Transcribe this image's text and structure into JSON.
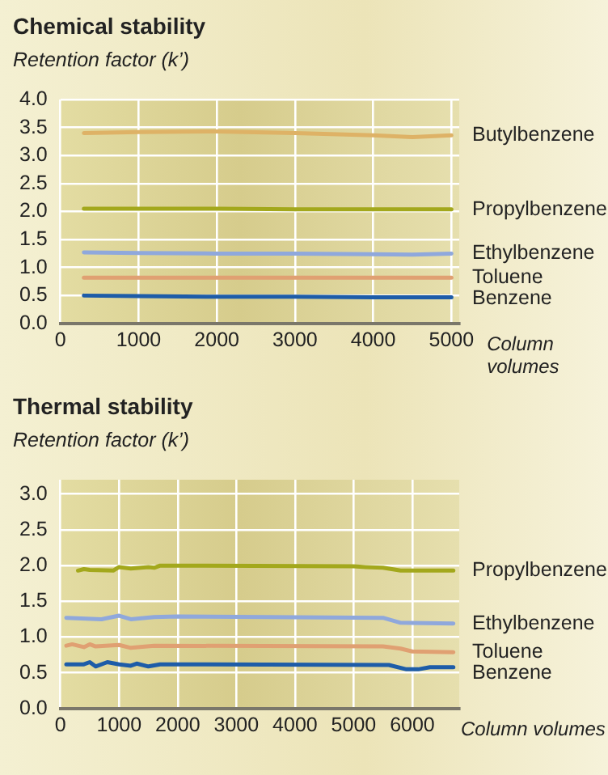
{
  "chart_data": [
    {
      "type": "line",
      "title": "Chemical stability",
      "ylabel": "Retention factor (k’)",
      "xlabel": "Column volumes",
      "xlim": [
        0,
        5100
      ],
      "ylim": [
        0,
        4
      ],
      "xticks": [
        0,
        1000,
        2000,
        3000,
        4000,
        5000
      ],
      "yticks": [
        {
          "value": 0,
          "label": "0.0"
        },
        0.5,
        {
          "value": 1,
          "label": "1.0"
        },
        1.5,
        {
          "value": 2,
          "label": "2.0"
        },
        2.5,
        {
          "value": 3,
          "label": "3.0"
        },
        3.5,
        {
          "value": 4,
          "label": "4.0"
        }
      ],
      "grid": true,
      "marker": "none",
      "line_style": "solid",
      "series": [
        {
          "name": "Butylbenzene",
          "color": "#deb266",
          "x": [
            300,
            1000,
            2000,
            3000,
            4000,
            4500,
            5000
          ],
          "values": [
            3.4,
            3.42,
            3.43,
            3.4,
            3.36,
            3.33,
            3.36
          ]
        },
        {
          "name": "Propylbenzene",
          "color": "#a3a81c",
          "x": [
            300,
            1000,
            2000,
            3000,
            4000,
            5000
          ],
          "values": [
            2.05,
            2.05,
            2.05,
            2.04,
            2.04,
            2.04
          ]
        },
        {
          "name": "Ethylbenzene",
          "color": "#8fa8dc",
          "x": [
            300,
            1000,
            2000,
            3000,
            4000,
            4500,
            5000
          ],
          "values": [
            1.27,
            1.26,
            1.25,
            1.25,
            1.24,
            1.23,
            1.25
          ]
        },
        {
          "name": "Toluene",
          "color": "#e0a072",
          "x": [
            300,
            1000,
            2000,
            3000,
            4000,
            5000
          ],
          "values": [
            0.82,
            0.82,
            0.82,
            0.82,
            0.82,
            0.82
          ]
        },
        {
          "name": "Benzene",
          "color": "#1d5ca8",
          "x": [
            300,
            1000,
            2000,
            3000,
            4000,
            5000
          ],
          "values": [
            0.5,
            0.49,
            0.48,
            0.48,
            0.47,
            0.47
          ]
        }
      ]
    },
    {
      "type": "line",
      "title": "Thermal stability",
      "ylabel": "Retention factor (k’)",
      "xlabel": "Column volumes",
      "xlim": [
        0,
        6800
      ],
      "ylim": [
        0,
        3.2
      ],
      "xticks": [
        0,
        1000,
        2000,
        3000,
        4000,
        5000,
        6000
      ],
      "yticks": [
        {
          "value": 0,
          "label": "0.0"
        },
        0.5,
        {
          "value": 1,
          "label": "1.0"
        },
        1.5,
        {
          "value": 2,
          "label": "2.0"
        },
        2.5,
        {
          "value": 3,
          "label": "3.0"
        }
      ],
      "grid": true,
      "marker": "none",
      "line_style": "solid",
      "series": [
        {
          "name": "Propylbenzene",
          "color": "#a3a81c",
          "x": [
            300,
            400,
            500,
            900,
            1000,
            1200,
            1500,
            1600,
            1700,
            5000,
            5200,
            5500,
            5800,
            6700
          ],
          "values": [
            1.93,
            1.95,
            1.94,
            1.93,
            1.98,
            1.96,
            1.98,
            1.97,
            2.0,
            1.99,
            1.98,
            1.97,
            1.93,
            1.93
          ]
        },
        {
          "name": "Ethylbenzene",
          "color": "#8fa8dc",
          "x": [
            100,
            700,
            1000,
            1200,
            1600,
            2000,
            5500,
            5800,
            6700
          ],
          "values": [
            1.27,
            1.25,
            1.3,
            1.25,
            1.28,
            1.29,
            1.27,
            1.2,
            1.19
          ]
        },
        {
          "name": "Toluene",
          "color": "#e0a072",
          "x": [
            100,
            200,
            400,
            500,
            600,
            1000,
            1200,
            1600,
            5500,
            5800,
            6000,
            6700
          ],
          "values": [
            0.88,
            0.9,
            0.86,
            0.9,
            0.87,
            0.89,
            0.85,
            0.88,
            0.87,
            0.84,
            0.8,
            0.79
          ]
        },
        {
          "name": "Benzene",
          "color": "#1d5ca8",
          "x": [
            100,
            400,
            500,
            600,
            800,
            1000,
            1200,
            1300,
            1500,
            1700,
            5600,
            5900,
            6100,
            6300,
            6700
          ],
          "values": [
            0.62,
            0.62,
            0.65,
            0.59,
            0.65,
            0.62,
            0.6,
            0.63,
            0.59,
            0.62,
            0.61,
            0.55,
            0.55,
            0.58,
            0.58
          ]
        }
      ]
    }
  ]
}
